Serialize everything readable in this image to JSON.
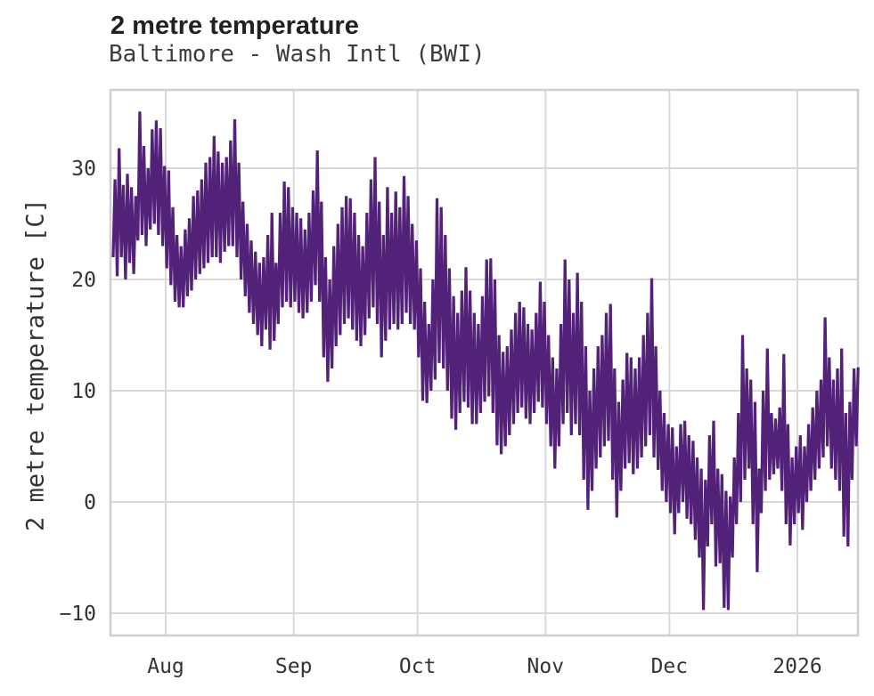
{
  "header": {
    "title": "2 metre temperature",
    "subtitle": "Baltimore - Wash Intl (BWI)"
  },
  "chart_data": {
    "type": "line",
    "title": "2 metre temperature",
    "subtitle": "Baltimore - Wash Intl (BWI)",
    "xlabel": "",
    "ylabel": "2 metre temperature [C]",
    "ylim": [
      -12,
      37
    ],
    "grid": true,
    "legend": "none",
    "line_color": "#522178",
    "grid_color": "#d9d9d9",
    "x_axis": {
      "start": "2025-07-19",
      "end": "2026-01-15",
      "unit": "days",
      "ticks": [
        {
          "label": "Aug",
          "day": 13
        },
        {
          "label": "Sep",
          "day": 44
        },
        {
          "label": "Oct",
          "day": 74
        },
        {
          "label": "Nov",
          "day": 105
        },
        {
          "label": "Dec",
          "day": 135
        },
        {
          "label": "2026",
          "day": 166
        }
      ]
    },
    "y_axis": {
      "ticks": [
        {
          "label": "30",
          "value": 30
        },
        {
          "label": "20",
          "value": 20
        },
        {
          "label": "10",
          "value": 10
        },
        {
          "label": "0",
          "value": 0
        },
        {
          "label": "−10",
          "value": -10
        }
      ]
    },
    "sampling": "daily min/max envelope read from plot, 2 vertices per day",
    "series": [
      {
        "name": "daily_min",
        "values": [
          22,
          20.3,
          22,
          20,
          21.5,
          20.5,
          23.5,
          24,
          23,
          24.5,
          25,
          24,
          23,
          21,
          19.5,
          18,
          17.5,
          17.5,
          18.5,
          19,
          20,
          20.5,
          21,
          21.5,
          22,
          22,
          21.5,
          22.5,
          23,
          23,
          22,
          20,
          18.5,
          17,
          16,
          15,
          14,
          15.5,
          13.7,
          14.5,
          16,
          17.5,
          18,
          17.5,
          18,
          17,
          16.5,
          17,
          18,
          19.5,
          18,
          13,
          10.8,
          12,
          14,
          15,
          16,
          16.5,
          15.5,
          14.5,
          14,
          15,
          16.5,
          17.5,
          16,
          13,
          14.5,
          15.5,
          16,
          15.5,
          16,
          17,
          16,
          15.5,
          13,
          9.1,
          8.9,
          10,
          11,
          12.5,
          12,
          10,
          7.5,
          6.5,
          8,
          9,
          8.5,
          7,
          7,
          8,
          9,
          9.5,
          8,
          5.1,
          4.3,
          5,
          6,
          7,
          8,
          8.5,
          7.5,
          7,
          8,
          9,
          8.5,
          7,
          5,
          3,
          5,
          7,
          8,
          6,
          7,
          6,
          2,
          -0.7,
          1,
          3,
          4,
          5,
          5.5,
          2,
          -1.4,
          1,
          3,
          3.5,
          2.5,
          3,
          4,
          5,
          6,
          4,
          2.9,
          1,
          0,
          -1,
          -2.9,
          -1,
          0,
          -1.5,
          -2,
          -3.4,
          -5,
          -9.7,
          -4,
          -2,
          -5.8,
          -5.5,
          -9.5,
          -9.7,
          -5,
          -2,
          0,
          2,
          3,
          -2,
          -6.3,
          -1,
          1,
          2,
          2.5,
          3,
          1,
          -2,
          -3.9,
          -2,
          -1,
          -2.5,
          0,
          1,
          2,
          3,
          4,
          5,
          3,
          2,
          1,
          -3.1,
          -4,
          2,
          5
        ]
      },
      {
        "name": "daily_max",
        "values": [
          29,
          31.8,
          28.5,
          29.5,
          28.3,
          27.5,
          35.1,
          32,
          30,
          33.5,
          34.3,
          33.6,
          30.2,
          29.8,
          26.5,
          24,
          23,
          24.5,
          25.5,
          27.5,
          28,
          29,
          30.5,
          31,
          32.9,
          31.5,
          30.5,
          31,
          32.5,
          34.4,
          30.5,
          27,
          25,
          23.5,
          22.5,
          21.5,
          22,
          24,
          26,
          21.5,
          26,
          28.8,
          28.3,
          26.5,
          26,
          25.5,
          24.5,
          26,
          28,
          31.6,
          27,
          22,
          20,
          23,
          25,
          26.5,
          27.5,
          27.3,
          26,
          24,
          23,
          26,
          29,
          31,
          27,
          24,
          28.3,
          26,
          27.9,
          26.5,
          29.3,
          27.5,
          25,
          23.5,
          21,
          18,
          16,
          20,
          27.3,
          26.5,
          24,
          21,
          18.5,
          17,
          19,
          21.1,
          19,
          17,
          16,
          18.5,
          21.8,
          21.9,
          20,
          15,
          13.5,
          14,
          15.5,
          17,
          18,
          17.5,
          16,
          15.5,
          17,
          19.8,
          18,
          15,
          13,
          12,
          16,
          21.8,
          20,
          17,
          20.6,
          18,
          14,
          10,
          12,
          14,
          15,
          17,
          17.8,
          12,
          9,
          11,
          13.4,
          13,
          12,
          13,
          15,
          17,
          20.1,
          14,
          10,
          8,
          7,
          6.7,
          5,
          7,
          7.3,
          6,
          5.5,
          4,
          3,
          2,
          6,
          7.3,
          3,
          2.5,
          1,
          0.5,
          4,
          8,
          15,
          12,
          11,
          9,
          3,
          10,
          13.8,
          8,
          7.5,
          8.5,
          13.3,
          7,
          4,
          5,
          6,
          5,
          7,
          8.5,
          10,
          11,
          16.6,
          13,
          11,
          12,
          13.8,
          8,
          9,
          12,
          12.1
        ]
      }
    ]
  }
}
